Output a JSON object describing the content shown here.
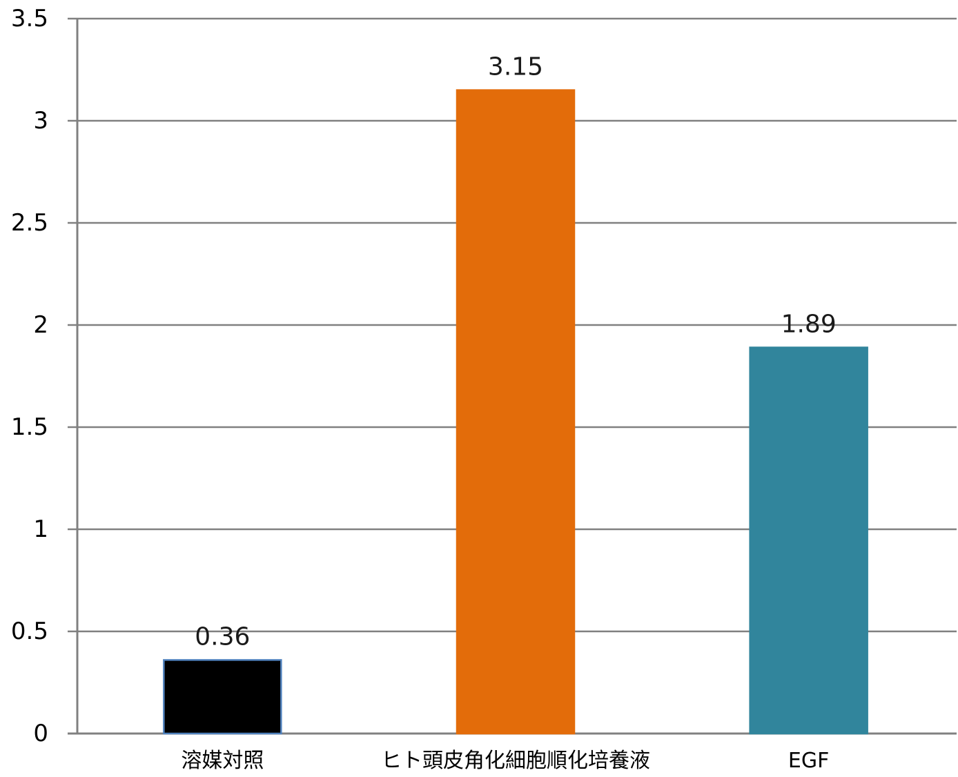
{
  "chart_data": {
    "type": "bar",
    "title": "",
    "xlabel": "",
    "ylabel": "",
    "ylim": [
      0,
      3.5
    ],
    "yticks": [
      0,
      0.5,
      1,
      1.5,
      2,
      2.5,
      3,
      3.5
    ],
    "ytick_labels": [
      "0",
      "0.5",
      "1",
      "1.5",
      "2",
      "2.5",
      "3",
      "3.5"
    ],
    "grid": true,
    "legend": "none",
    "categories": [
      "溶媒対照",
      "ヒト頭皮角化細胞順化培養液",
      "EGF"
    ],
    "values": [
      0.36,
      3.15,
      1.89
    ],
    "data_labels": [
      "0.36",
      "3.15",
      "1.89"
    ],
    "colors": [
      "#000000",
      "#e36c0a",
      "#31859c"
    ],
    "bar_outline_colors": [
      "#4f81bd",
      "#e36c0a",
      "#31859c"
    ],
    "gridline_color": "#808080",
    "axis_color": "#808080"
  }
}
